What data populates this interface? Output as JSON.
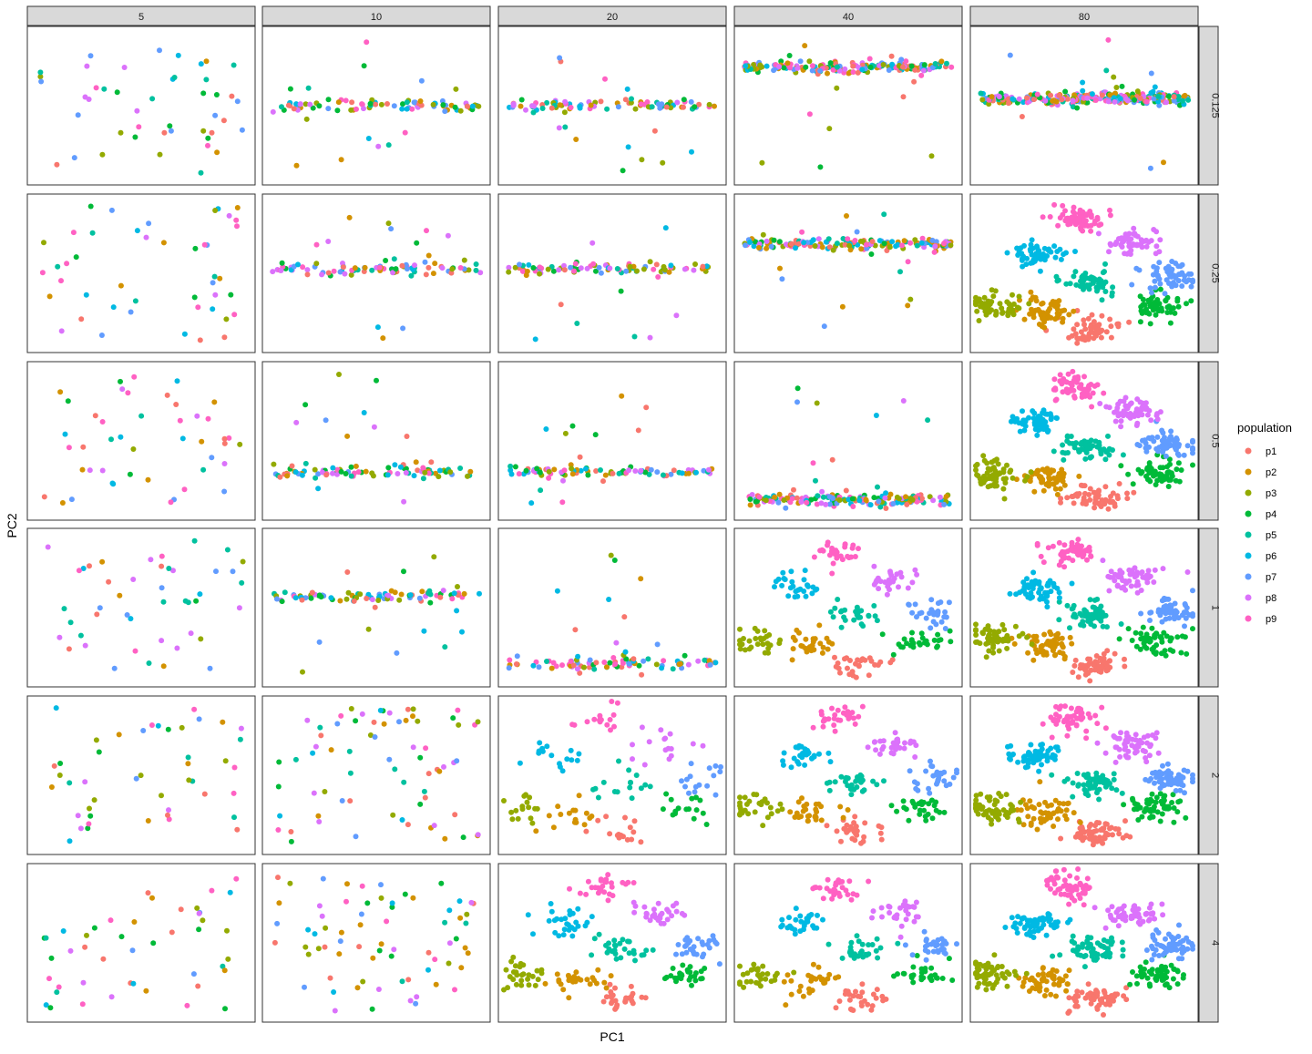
{
  "chart_data": {
    "type": "scatter",
    "xlabel": "PC1",
    "ylabel": "PC2",
    "facet_cols": [
      "5",
      "10",
      "20",
      "40",
      "80"
    ],
    "facet_rows": [
      "0.125",
      "0.25",
      "0.5",
      "1",
      "2",
      "4"
    ],
    "grid": false,
    "legend": {
      "title": "population",
      "placement": "right",
      "items": [
        {
          "name": "p1",
          "color": "#F8766D"
        },
        {
          "name": "p2",
          "color": "#D39200"
        },
        {
          "name": "p3",
          "color": "#93AA00"
        },
        {
          "name": "p4",
          "color": "#00BA38"
        },
        {
          "name": "p5",
          "color": "#00C19F"
        },
        {
          "name": "p6",
          "color": "#00B9E3"
        },
        {
          "name": "p7",
          "color": "#619CFF"
        },
        {
          "name": "p8",
          "color": "#DB72FB"
        },
        {
          "name": "p9",
          "color": "#FF61C3"
        }
      ]
    }
  }
}
